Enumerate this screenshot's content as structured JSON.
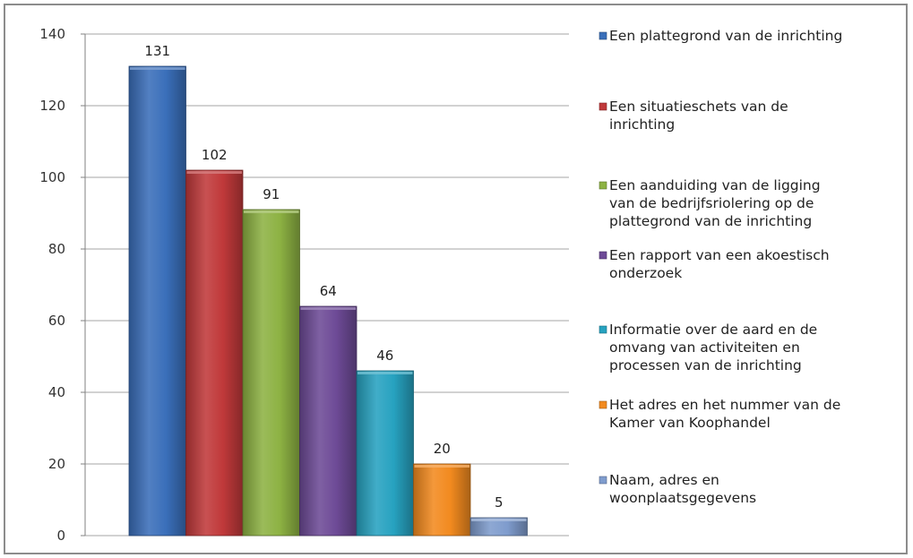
{
  "chart_data": {
    "type": "bar",
    "title": "",
    "xlabel": "",
    "ylabel": "",
    "ylim": [
      0,
      140
    ],
    "yticks": [
      0,
      20,
      40,
      60,
      80,
      100,
      120,
      140
    ],
    "grid": true,
    "legend_position": "right",
    "series": [
      {
        "name": "Een plattegrond van de inrichting",
        "value": 131,
        "color": "#3a6fba",
        "legend_lines": [
          "Een plattegrond van de inrichting"
        ]
      },
      {
        "name": "Een situatieschets van de inrichting",
        "value": 102,
        "color": "#c0393a",
        "legend_lines": [
          "Een situatieschets van de",
          "inrichting"
        ]
      },
      {
        "name": "Een aanduiding van de ligging van de bedrijfsriolering op de plattegrond van de inrichting",
        "value": 91,
        "color": "#8db243",
        "legend_lines": [
          "Een aanduiding van de ligging",
          "van de bedrijfsriolering op de",
          "plattegrond van de inrichting"
        ]
      },
      {
        "name": "Een rapport van een akoestisch onderzoek",
        "value": 64,
        "color": "#6d4a96",
        "legend_lines": [
          "Een rapport van een akoestisch",
          "onderzoek"
        ]
      },
      {
        "name": "Informatie over de aard en de omvang van activiteiten en processen van de inrichting",
        "value": 46,
        "color": "#27a2c0",
        "legend_lines": [
          "Informatie over de aard en de",
          "omvang van activiteiten en",
          "processen van de inrichting"
        ]
      },
      {
        "name": "Het adres en het nummer van de Kamer van Koophandel",
        "value": 20,
        "color": "#f28a1f",
        "legend_lines": [
          "Het adres en het nummer van de",
          "Kamer van Koophandel"
        ]
      },
      {
        "name": "Naam, adres en woonplaatsgegevens",
        "value": 5,
        "color": "#7f9ccd",
        "legend_lines": [
          "Naam, adres en",
          "woonplaatsgegevens"
        ]
      }
    ]
  }
}
